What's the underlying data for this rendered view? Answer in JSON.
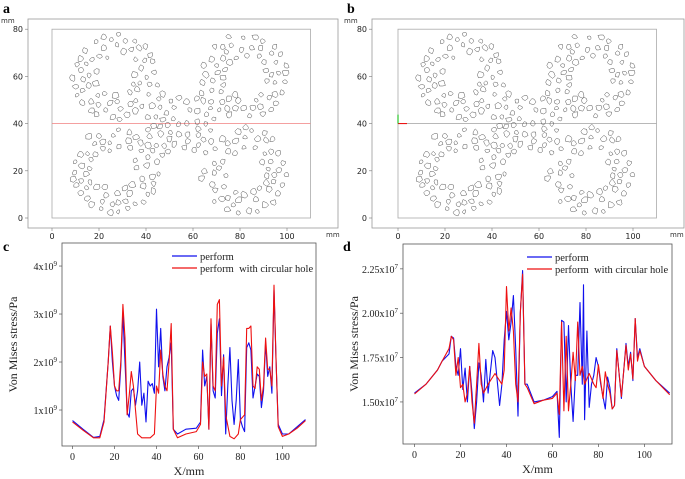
{
  "panels": {
    "a": {
      "label": "a",
      "unit_y": "mm",
      "unit_x": "mm",
      "x_ticks": [
        "0",
        "20",
        "40",
        "60",
        "80",
        "100"
      ],
      "y_ticks": [
        "0",
        "20",
        "40",
        "60",
        "80"
      ],
      "midline_color": "#f08080"
    },
    "b": {
      "label": "b",
      "unit_y": "mm",
      "unit_x": "mm",
      "x_ticks": [
        "0",
        "20",
        "40",
        "60",
        "80",
        "100"
      ],
      "y_ticks": [
        "0",
        "20",
        "40",
        "60",
        "80"
      ],
      "midline_color": "#a0a0a0"
    },
    "c": {
      "label": "c"
    },
    "d": {
      "label": "d"
    }
  },
  "colors": {
    "perform": "#1010ee",
    "hole": "#ee1010"
  },
  "chart_data": [
    {
      "panel": "c",
      "type": "line",
      "xlabel": "X/mm",
      "ylabel": "Von Mises stress/Pa",
      "xlim": [
        -5,
        116
      ],
      "ylim": [
        250000000.0,
        4480000000.0
      ],
      "x_ticks": [
        0,
        20,
        40,
        60,
        80,
        100
      ],
      "y_ticks": [
        {
          "value": 1000000000.0,
          "mantissa": "1x10",
          "exp": "9"
        },
        {
          "value": 2000000000.0,
          "mantissa": "2x10",
          "exp": "9"
        },
        {
          "value": 3000000000.0,
          "mantissa": "3x10",
          "exp": "9"
        },
        {
          "value": 4000000000.0,
          "mantissa": "4x10",
          "exp": "9"
        }
      ],
      "legend": "top-right",
      "series": [
        {
          "name": "perform",
          "color": "#1010ee",
          "x": [
            0,
            5,
            10,
            13,
            15,
            17,
            18,
            19,
            20,
            21,
            22,
            23,
            24,
            25,
            26,
            27,
            28,
            29,
            30,
            31,
            32,
            33,
            34,
            35,
            36,
            37,
            38,
            39,
            40,
            41,
            42,
            43,
            44,
            45,
            46,
            47,
            48,
            50,
            54,
            59,
            61,
            62,
            63,
            64,
            65,
            66,
            67,
            68,
            69,
            70,
            71,
            72,
            73,
            74,
            75,
            76,
            77,
            78,
            79,
            80,
            81,
            82,
            83,
            84,
            85,
            86,
            87,
            88,
            89,
            90,
            91,
            92,
            93,
            94,
            95,
            96,
            97,
            98,
            100,
            103,
            107,
            111
          ],
          "y": [
            0.78,
            0.6,
            0.43,
            0.45,
            0.8,
            2.0,
            2.75,
            2.0,
            1.5,
            1.3,
            1.2,
            1.9,
            3.0,
            2.0,
            0.95,
            0.85,
            1.4,
            1.45,
            1.1,
            1.4,
            2.0,
            1.1,
            1.35,
            0.75,
            1.6,
            1.5,
            1.55,
            1.35,
            3.1,
            1.9,
            2.7,
            1.7,
            1.4,
            1.9,
            2.1,
            2.4,
            0.6,
            0.5,
            0.6,
            0.62,
            0.75,
            2.25,
            1.5,
            1.7,
            0.6,
            2.8,
            1.4,
            1.25,
            2.6,
            2.9,
            1.3,
            2.15,
            0.5,
            1.5,
            2.3,
            1.2,
            0.7,
            1.2,
            2.05,
            0.8,
            0.65,
            0.55,
            2.3,
            2.4,
            2.25,
            1.25,
            1.5,
            1.75,
            1.7,
            1.05,
            1.4,
            2.4,
            1.7,
            1.9,
            1.35,
            3.5,
            2.0,
            0.7,
            0.5,
            0.5,
            0.65,
            0.8
          ],
          "y_scale": 1000000000.0
        },
        {
          "name": "perform  with circular hole",
          "color": "#ee1010",
          "x": [
            0,
            5,
            10,
            13,
            15,
            17,
            18,
            19,
            20,
            21,
            22,
            23,
            24,
            25,
            26,
            27,
            28,
            29,
            30,
            31,
            33,
            37,
            39,
            40,
            41,
            42,
            43,
            44,
            45,
            46,
            47,
            48,
            50,
            54,
            59,
            61,
            62,
            63,
            64,
            65,
            66,
            67,
            68,
            69,
            70,
            71,
            72,
            73,
            75,
            77,
            79,
            80,
            82,
            83,
            84,
            85,
            86,
            87,
            88,
            89,
            90,
            91,
            92,
            93,
            94,
            95,
            96,
            97,
            98,
            100,
            103,
            107,
            111
          ],
          "y": [
            0.75,
            0.58,
            0.42,
            0.42,
            0.75,
            2.0,
            2.75,
            2.2,
            1.5,
            1.4,
            1.4,
            2.0,
            3.2,
            2.5,
            0.9,
            1.3,
            1.8,
            1.5,
            1.0,
            0.5,
            0.42,
            0.42,
            0.5,
            1.5,
            1.35,
            2.25,
            1.75,
            1.5,
            1.4,
            2.0,
            2.8,
            0.6,
            0.42,
            0.5,
            0.55,
            0.7,
            2.0,
            1.7,
            1.75,
            0.6,
            2.9,
            1.5,
            1.4,
            3.2,
            3.3,
            1.5,
            2.1,
            0.9,
            0.45,
            0.4,
            0.5,
            0.8,
            0.9,
            2.7,
            2.7,
            2.75,
            1.5,
            1.45,
            1.9,
            1.85,
            1.2,
            1.5,
            2.5,
            1.85,
            1.85,
            1.5,
            3.6,
            2.0,
            0.65,
            0.45,
            0.5,
            0.62,
            0.78
          ],
          "y_scale": 1000000000.0
        }
      ]
    },
    {
      "panel": "d",
      "type": "line",
      "xlabel": "X/mm",
      "ylabel": "Von Mises stress/Pa",
      "xlim": [
        -5,
        112
      ],
      "ylim": [
        12630000.0,
        23900000.0
      ],
      "x_ticks": [
        0,
        20,
        40,
        60,
        80,
        100
      ],
      "y_ticks": [
        {
          "value": 15000000.0,
          "mantissa": "1.50x10",
          "exp": "7"
        },
        {
          "value": 17500000.0,
          "mantissa": "1.75x10",
          "exp": "7"
        },
        {
          "value": 20000000.0,
          "mantissa": "2.00x10",
          "exp": "7"
        },
        {
          "value": 22500000.0,
          "mantissa": "2.25x10",
          "exp": "7"
        }
      ],
      "legend": "top-right",
      "series": [
        {
          "name": "perform",
          "color": "#1010ee",
          "x": [
            0,
            5,
            10,
            12,
            15,
            16,
            17,
            18,
            19,
            20,
            21,
            22,
            23,
            24,
            25,
            26,
            27,
            28,
            29,
            30,
            31,
            32,
            34,
            35,
            37,
            38,
            39,
            40,
            41,
            42,
            43,
            44,
            45,
            46,
            47,
            48,
            49,
            52,
            56,
            60,
            62,
            63,
            64,
            65,
            66,
            67,
            68,
            69,
            70,
            71,
            72,
            73,
            73.5,
            74,
            75,
            76,
            77,
            78,
            79,
            80,
            81,
            83,
            84,
            85,
            86,
            87,
            88,
            90,
            92,
            93,
            94,
            95,
            96,
            97,
            98,
            100,
            105,
            111
          ],
          "y": [
            1.55,
            1.6,
            1.68,
            1.73,
            1.77,
            1.87,
            1.86,
            1.7,
            1.65,
            1.8,
            1.57,
            1.69,
            1.5,
            1.7,
            1.55,
            1.35,
            1.5,
            1.72,
            1.65,
            1.5,
            1.74,
            1.55,
            1.79,
            1.75,
            1.48,
            1.6,
            1.85,
            2.01,
            1.85,
            1.95,
            2.1,
            1.8,
            1.42,
            2.0,
            2.24,
            1.6,
            1.6,
            1.5,
            1.51,
            1.53,
            1.56,
            1.3,
            1.96,
            1.95,
            1.5,
            1.93,
            1.6,
            1.39,
            1.65,
            1.65,
            2.06,
            1.6,
            2.16,
            1.4,
            1.9,
            1.47,
            1.6,
            1.65,
            1.75,
            1.7,
            1.6,
            1.46,
            1.64,
            1.58,
            1.46,
            1.48,
            1.8,
            1.52,
            1.83,
            1.7,
            1.78,
            1.62,
            1.97,
            1.75,
            1.8,
            1.7,
            1.62,
            1.55
          ],
          "y_scale": 10000000.0
        },
        {
          "name": "perform  with circular hole",
          "color": "#ee1010",
          "x": [
            0,
            5,
            10,
            12,
            15,
            16,
            17,
            18,
            19,
            20,
            21,
            22,
            23,
            24,
            25,
            26,
            27,
            28,
            29,
            30,
            32,
            35,
            38,
            39,
            40,
            41,
            42,
            43,
            44,
            45,
            46,
            47,
            48,
            49,
            52,
            56,
            60,
            62,
            63,
            64,
            65,
            66,
            67,
            68,
            69,
            70,
            71,
            72,
            73,
            74,
            76,
            78,
            79,
            80,
            82,
            83,
            84,
            85,
            86,
            87,
            88,
            90,
            92,
            93,
            94,
            95,
            96,
            97,
            98,
            100,
            105,
            111
          ],
          "y": [
            1.545,
            1.6,
            1.68,
            1.73,
            1.8,
            1.87,
            1.85,
            1.65,
            1.75,
            1.58,
            1.6,
            1.5,
            1.55,
            1.7,
            1.5,
            1.38,
            1.6,
            1.83,
            1.6,
            1.55,
            1.6,
            1.66,
            1.6,
            1.68,
            2.15,
            1.9,
            2.03,
            1.9,
            1.6,
            1.5,
            2.0,
            2.22,
            1.6,
            1.58,
            1.49,
            1.51,
            1.52,
            1.55,
            1.43,
            1.95,
            1.45,
            1.87,
            1.45,
            1.6,
            1.78,
            1.62,
            1.95,
            1.65,
            1.7,
            1.6,
            1.66,
            1.6,
            1.58,
            1.71,
            1.52,
            1.67,
            1.6,
            1.55,
            1.46,
            1.48,
            1.79,
            1.53,
            1.82,
            1.68,
            1.77,
            1.63,
            1.97,
            1.73,
            1.79,
            1.7,
            1.62,
            1.54
          ],
          "y_scale": 10000000.0
        }
      ]
    }
  ]
}
